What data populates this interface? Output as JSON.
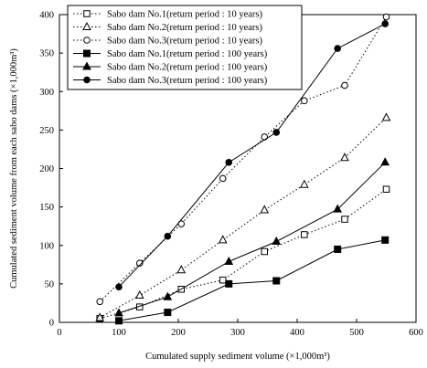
{
  "chart_data": {
    "type": "line",
    "xlabel": "Cumulated supply sediment volume (×1,000m³)",
    "ylabel": "Cumulated sediment volume from each sabo dams (×1,000m³)",
    "xlim": [
      0,
      600
    ],
    "ylim": [
      0,
      400
    ],
    "xticks": [
      0,
      100,
      200,
      300,
      400,
      500,
      600
    ],
    "yticks": [
      0,
      50,
      100,
      150,
      200,
      250,
      300,
      350,
      400
    ],
    "grid": false,
    "legend_position": "top-left",
    "series": [
      {
        "name": "Sabo dam No.1(return period : 10 years)",
        "marker": "square-open",
        "line": "dotted",
        "points": [
          [
            68,
            5
          ],
          [
            135,
            20
          ],
          [
            205,
            43
          ],
          [
            275,
            55
          ],
          [
            345,
            92
          ],
          [
            412,
            114
          ],
          [
            480,
            134
          ],
          [
            550,
            173
          ]
        ]
      },
      {
        "name": "Sabo dam No.2(return period : 10 years)",
        "marker": "triangle-open",
        "line": "dotted",
        "points": [
          [
            68,
            6
          ],
          [
            135,
            35
          ],
          [
            205,
            68
          ],
          [
            275,
            107
          ],
          [
            345,
            146
          ],
          [
            412,
            179
          ],
          [
            480,
            214
          ],
          [
            550,
            266
          ]
        ]
      },
      {
        "name": "Sabo dam No.3(return period : 10 years)",
        "marker": "circle-open",
        "line": "dotted",
        "points": [
          [
            68,
            27
          ],
          [
            135,
            77
          ],
          [
            205,
            128
          ],
          [
            275,
            187
          ],
          [
            345,
            241
          ],
          [
            412,
            288
          ],
          [
            480,
            308
          ],
          [
            550,
            397
          ]
        ]
      },
      {
        "name": "Sabo dam No.1(return period : 100 years)",
        "marker": "square-filled",
        "line": "solid",
        "points": [
          [
            100,
            2
          ],
          [
            182,
            13
          ],
          [
            285,
            50
          ],
          [
            365,
            54
          ],
          [
            468,
            95
          ],
          [
            548,
            107
          ]
        ]
      },
      {
        "name": "Sabo dam No.2(return period : 100 years)",
        "marker": "triangle-filled",
        "line": "solid",
        "points": [
          [
            100,
            12
          ],
          [
            182,
            33
          ],
          [
            285,
            79
          ],
          [
            365,
            105
          ],
          [
            468,
            147
          ],
          [
            548,
            208
          ]
        ]
      },
      {
        "name": "Sabo dam No.3(return period : 100 years)",
        "marker": "circle-filled",
        "line": "solid",
        "points": [
          [
            100,
            46
          ],
          [
            182,
            112
          ],
          [
            285,
            208
          ],
          [
            365,
            247
          ],
          [
            468,
            356
          ],
          [
            548,
            388
          ]
        ]
      }
    ]
  }
}
